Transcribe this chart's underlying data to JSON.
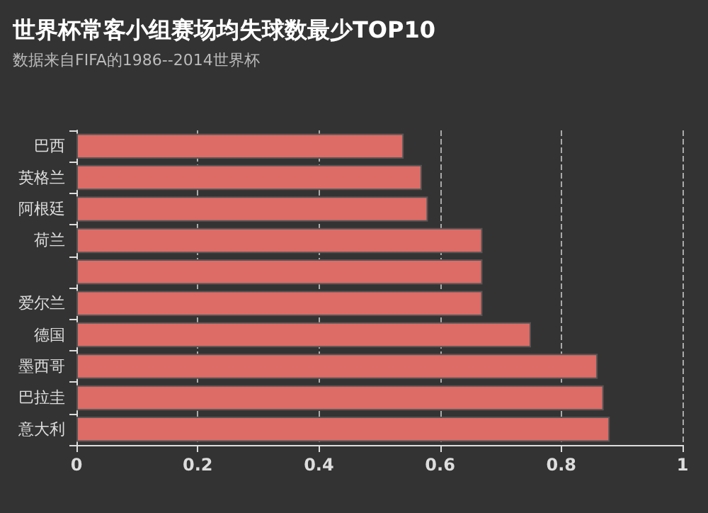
{
  "chart_data": {
    "type": "bar",
    "orientation": "horizontal",
    "title": "世界杯常客小组赛场均失球数最少TOP10",
    "subtitle": "数据来自FIFA的1986--2014世界杯",
    "categories": [
      "巴西",
      "英格兰",
      "阿根廷",
      "荷兰",
      null,
      "爱尔兰",
      "德国",
      "墨西哥",
      "巴拉圭",
      "意大利"
    ],
    "values": [
      0.54,
      0.57,
      0.58,
      0.67,
      0.67,
      0.67,
      0.75,
      0.86,
      0.87,
      0.88
    ],
    "color": "#dd6b66",
    "xlim": [
      0,
      1
    ],
    "xticks": [
      0,
      0.2,
      0.4,
      0.6,
      0.8,
      1
    ],
    "grid": "x"
  }
}
